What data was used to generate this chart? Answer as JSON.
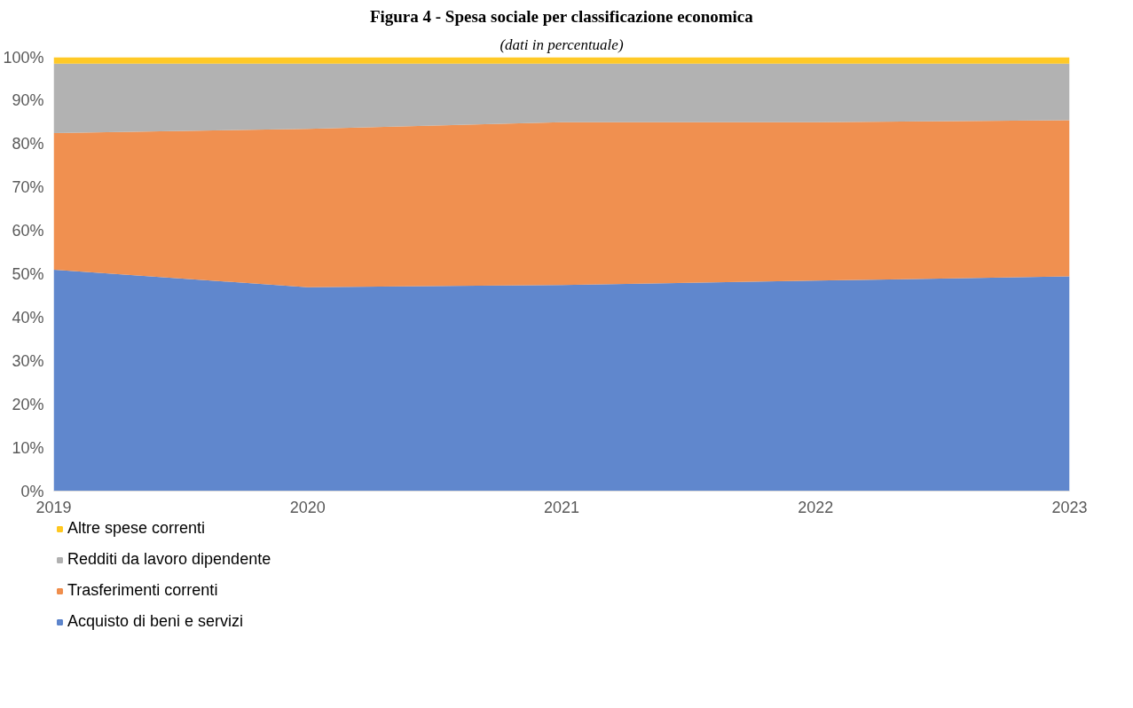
{
  "chart_data": {
    "type": "area",
    "stacked": true,
    "title": "Figura 4 - Spesa sociale per classificazione economica",
    "subtitle": "(dati in percentuale)",
    "categories": [
      "2019",
      "2020",
      "2021",
      "2022",
      "2023"
    ],
    "ylim": [
      0,
      100
    ],
    "yticks": [
      {
        "value": 0,
        "label": "0%"
      },
      {
        "value": 10,
        "label": "10%"
      },
      {
        "value": 20,
        "label": "20%"
      },
      {
        "value": 30,
        "label": "30%"
      },
      {
        "value": 40,
        "label": "40%"
      },
      {
        "value": 50,
        "label": "50%"
      },
      {
        "value": 60,
        "label": "60%"
      },
      {
        "value": 70,
        "label": "70%"
      },
      {
        "value": 80,
        "label": "80%"
      },
      {
        "value": 90,
        "label": "90%"
      },
      {
        "value": 100,
        "label": "100%"
      }
    ],
    "grid": false,
    "legend": "bottom",
    "series": [
      {
        "name": "Acquisto di beni e servizi",
        "color": "#4472c4",
        "values": [
          51,
          47,
          47.5,
          48.5,
          49.5
        ]
      },
      {
        "name": "Trasferimenti correnti",
        "color": "#ed7d31",
        "values": [
          31.5,
          36.5,
          37.5,
          36.5,
          36
        ]
      },
      {
        "name": "Redditi da lavoro dipendente",
        "color": "#a5a5a5",
        "values": [
          16,
          15,
          13.5,
          13.5,
          13
        ]
      },
      {
        "name": "Altre spese correnti",
        "color": "#ffc000",
        "values": [
          1.5,
          1.5,
          1.5,
          1.5,
          1.5
        ]
      }
    ]
  }
}
